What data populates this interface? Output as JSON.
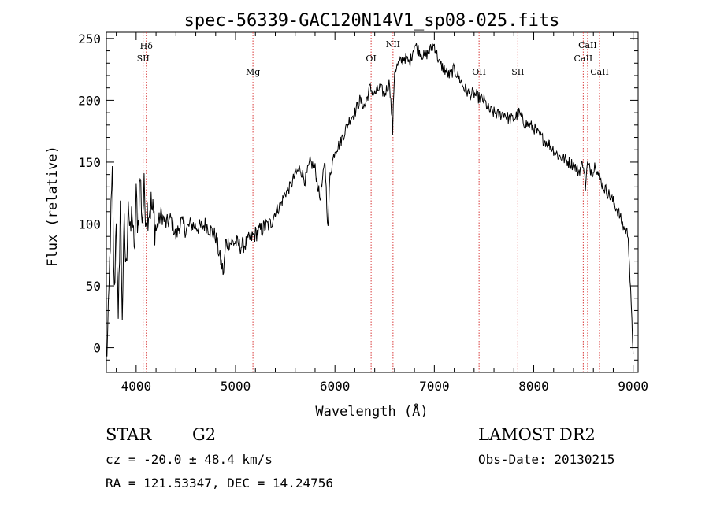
{
  "chart_data": {
    "type": "line",
    "title": "spec-56339-GAC120N14V1_sp08-025.fits",
    "xlabel": "Wavelength (Å)",
    "ylabel": "Flux (relative)",
    "xlim": [
      3700,
      9050
    ],
    "ylim": [
      -20,
      255
    ],
    "xticks": [
      4000,
      5000,
      6000,
      7000,
      8000,
      9000
    ],
    "yticks": [
      0,
      50,
      100,
      150,
      200,
      250
    ],
    "grid": false,
    "series": [
      {
        "x": [
          3700,
          3720,
          3740,
          3760,
          3780,
          3800,
          3820,
          3840,
          3860,
          3880,
          3900,
          3920,
          3940,
          3960,
          3980,
          4000,
          4020,
          4040,
          4060,
          4080,
          4100,
          4150,
          4200,
          4250,
          4300,
          4350,
          4400,
          4450,
          4500,
          4550,
          4600,
          4650,
          4700,
          4750,
          4800,
          4850,
          4880,
          4900,
          4950,
          5000,
          5050,
          5100,
          5150,
          5200,
          5250,
          5300,
          5350,
          5400,
          5450,
          5500,
          5550,
          5600,
          5650,
          5700,
          5750,
          5800,
          5850,
          5900,
          5930,
          5950,
          6000,
          6050,
          6100,
          6150,
          6200,
          6250,
          6300,
          6350,
          6400,
          6450,
          6500,
          6550,
          6580,
          6600,
          6650,
          6700,
          6750,
          6800,
          6850,
          6900,
          6950,
          7000,
          7050,
          7100,
          7150,
          7200,
          7250,
          7300,
          7350,
          7400,
          7450,
          7500,
          7550,
          7600,
          7650,
          7700,
          7750,
          7800,
          7850,
          7900,
          7950,
          8000,
          8050,
          8100,
          8150,
          8200,
          8250,
          8300,
          8350,
          8400,
          8450,
          8500,
          8520,
          8540,
          8560,
          8600,
          8620,
          8650,
          8700,
          8750,
          8800,
          8850,
          8900,
          8950,
          9000
        ],
        "y": [
          -10,
          20,
          90,
          135,
          40,
          110,
          10,
          120,
          30,
          95,
          60,
          125,
          85,
          115,
          70,
          120,
          100,
          140,
          105,
          125,
          110,
          115,
          95,
          108,
          100,
          104,
          90,
          102,
          95,
          100,
          98,
          97,
          100,
          95,
          90,
          70,
          60,
          85,
          85,
          85,
          82,
          84,
          88,
          92,
          95,
          98,
          100,
          110,
          115,
          125,
          130,
          140,
          145,
          135,
          150,
          145,
          120,
          150,
          95,
          140,
          160,
          165,
          175,
          185,
          190,
          200,
          195,
          210,
          205,
          210,
          205,
          215,
          175,
          225,
          230,
          235,
          230,
          245,
          240,
          235,
          240,
          245,
          230,
          225,
          220,
          225,
          218,
          210,
          205,
          205,
          202,
          200,
          192,
          190,
          188,
          190,
          185,
          185,
          190,
          182,
          180,
          178,
          172,
          168,
          165,
          160,
          155,
          153,
          150,
          148,
          142,
          150,
          130,
          148,
          145,
          142,
          150,
          140,
          130,
          125,
          118,
          110,
          98,
          92,
          -5
        ]
      }
    ],
    "lines": [
      {
        "label": "Hδ",
        "x": 4102
      },
      {
        "label": "SII",
        "x": 4070
      },
      {
        "label": "Mg",
        "x": 5175
      },
      {
        "label": "OI",
        "x": 6364
      },
      {
        "label": "NII",
        "x": 6584
      },
      {
        "label": "OII",
        "x": 7450
      },
      {
        "label": "SII",
        "x": 7840
      },
      {
        "label": "CaII",
        "x": 8498
      },
      {
        "label": "CaII",
        "x": 8542
      },
      {
        "label": "CaII",
        "x": 8662
      }
    ],
    "line_color": "#d93a3a"
  },
  "info": {
    "object_class": "STAR",
    "subclass": "G2",
    "survey": "LAMOST DR2",
    "redshift": "cz = -20.0 ± 48.4 km/s",
    "obs_date": "Obs-Date: 20130215",
    "coords": "RA = 121.53347, DEC =  14.24756"
  }
}
